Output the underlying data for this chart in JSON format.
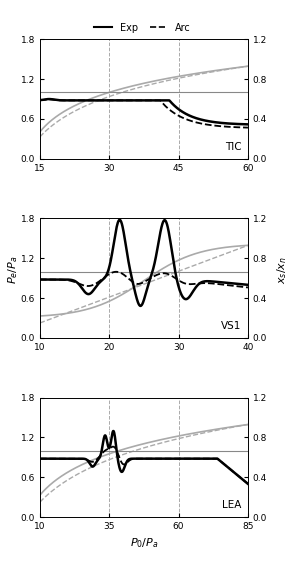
{
  "legend": {
    "exp_label": "Exp",
    "arc_label": "Arc"
  },
  "panels": [
    {
      "label": "TIC",
      "xlim": [
        15,
        60
      ],
      "xticks": [
        15,
        30,
        45,
        60
      ],
      "ylim_left": [
        0,
        1.8
      ],
      "ylim_right": [
        0,
        1.2
      ],
      "yticks_left": [
        0,
        0.6,
        1.2,
        1.8
      ],
      "yticks_right": [
        0,
        0.4,
        0.8,
        1.2
      ],
      "vlines": [
        30,
        45
      ],
      "hline_y": 1.0
    },
    {
      "label": "VS1",
      "xlim": [
        10,
        40
      ],
      "xticks": [
        10,
        20,
        30,
        40
      ],
      "ylim_left": [
        0,
        1.8
      ],
      "ylim_right": [
        0,
        1.2
      ],
      "yticks_left": [
        0,
        0.6,
        1.2,
        1.8
      ],
      "yticks_right": [
        0,
        0.4,
        0.8,
        1.2
      ],
      "vlines": [
        20,
        30
      ],
      "hline_y": 1.0
    },
    {
      "label": "LEA",
      "xlim": [
        10,
        85
      ],
      "xticks": [
        10,
        35,
        60,
        85
      ],
      "ylim_left": [
        0,
        1.8
      ],
      "ylim_right": [
        0,
        1.2
      ],
      "yticks_left": [
        0,
        0.6,
        1.2,
        1.8
      ],
      "yticks_right": [
        0,
        0.4,
        0.8,
        1.2
      ],
      "vlines": [
        35,
        60
      ],
      "hline_y": 1.0
    }
  ],
  "gray_color": "#aaaaaa",
  "black_color": "#000000",
  "hline_color": "#888888",
  "scale": 1.5,
  "lw_exp": 1.8,
  "lw_arc": 1.3,
  "lw_gray": 1.2,
  "lw_ref": 0.8
}
